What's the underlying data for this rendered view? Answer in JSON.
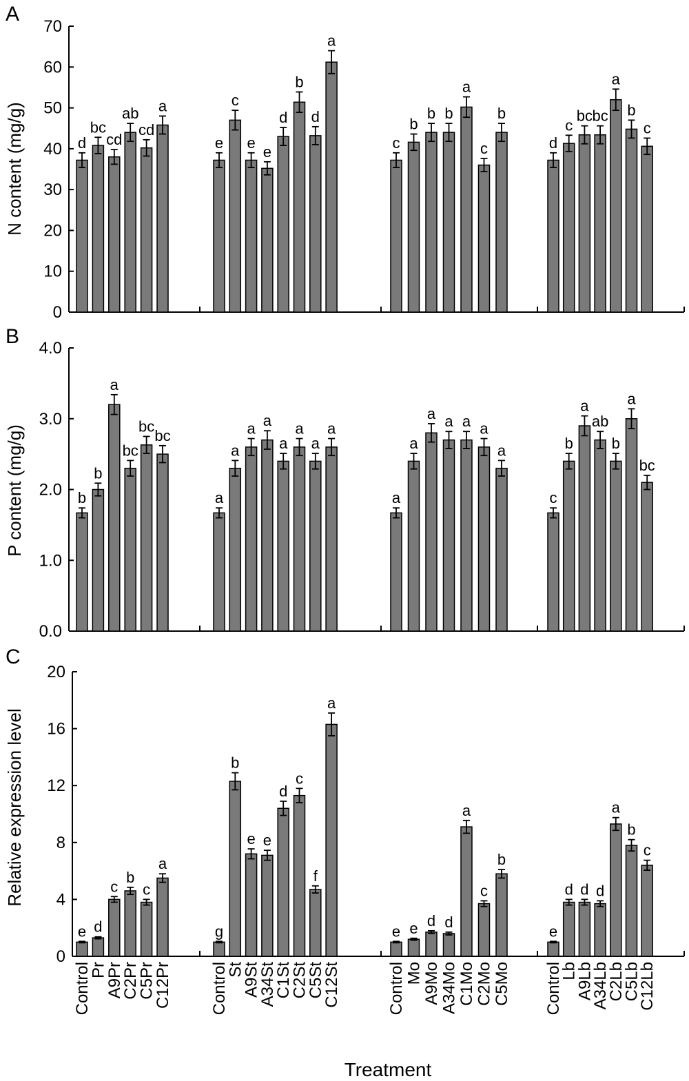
{
  "xlabel": "Treatment",
  "colors": {
    "bar": "#7a7a7a",
    "axis": "#000000"
  },
  "groups": [
    [
      "Control",
      "Pr",
      "A9Pr",
      "C2Pr",
      "C5Pr",
      "C12Pr"
    ],
    [
      "Control",
      "St",
      "A9St",
      "A34St",
      "C1St",
      "C2St",
      "C5St",
      "C12St"
    ],
    [
      "Control",
      "Mo",
      "A9Mo",
      "A34Mo",
      "C1Mo",
      "C2Mo",
      "C5Mo"
    ],
    [
      "Control",
      "Lb",
      "A9Lb",
      "A34Lb",
      "C2Lb",
      "C5Lb",
      "C12Lb"
    ]
  ],
  "chart_data": [
    {
      "type": "bar",
      "panel": "A",
      "ylabel": "N content (mg/g)",
      "ylim": [
        0,
        70
      ],
      "yticks": [
        "0",
        "10",
        "20",
        "30",
        "40",
        "50",
        "60",
        "70"
      ],
      "values": [
        [
          37.2,
          40.8,
          38.0,
          44.0,
          40.2,
          45.8
        ],
        [
          37.2,
          47.0,
          37.2,
          35.2,
          43.0,
          51.4,
          43.2,
          61.2
        ],
        [
          37.2,
          41.6,
          44.0,
          44.0,
          50.2,
          36.0,
          44.0
        ],
        [
          37.2,
          41.3,
          43.4,
          43.4,
          52.0,
          44.8,
          40.6
        ]
      ],
      "errors": [
        [
          1.8,
          2.0,
          1.8,
          2.2,
          2.0,
          2.2
        ],
        [
          1.8,
          2.4,
          1.8,
          1.6,
          2.2,
          2.5,
          2.2,
          2.8
        ],
        [
          1.8,
          2.0,
          2.2,
          2.2,
          2.5,
          1.6,
          2.2
        ],
        [
          1.8,
          2.0,
          2.2,
          2.2,
          2.6,
          2.2,
          2.0
        ]
      ],
      "letters": [
        [
          "d",
          "bc",
          "cd",
          "ab",
          "cd",
          "a"
        ],
        [
          "e",
          "c",
          "e",
          "e",
          "d",
          "b",
          "d",
          "a"
        ],
        [
          "c",
          "b",
          "b",
          "b",
          "a",
          "c",
          "b"
        ],
        [
          "d",
          "c",
          "bc",
          "bc",
          "a",
          "b",
          "c"
        ]
      ]
    },
    {
      "type": "bar",
      "panel": "B",
      "ylabel": "P content (mg/g)",
      "ylim": [
        0,
        4
      ],
      "yticks": [
        "0.0",
        "1.0",
        "2.0",
        "3.0",
        "4.0"
      ],
      "values": [
        [
          1.67,
          2.0,
          3.2,
          2.3,
          2.63,
          2.5
        ],
        [
          1.67,
          2.3,
          2.6,
          2.7,
          2.4,
          2.6,
          2.4,
          2.6
        ],
        [
          1.67,
          2.4,
          2.8,
          2.7,
          2.7,
          2.6,
          2.3
        ],
        [
          1.67,
          2.4,
          2.9,
          2.7,
          2.4,
          3.0,
          2.1
        ]
      ],
      "errors": [
        [
          0.07,
          0.09,
          0.14,
          0.11,
          0.12,
          0.12
        ],
        [
          0.07,
          0.11,
          0.12,
          0.13,
          0.11,
          0.12,
          0.11,
          0.12
        ],
        [
          0.07,
          0.11,
          0.13,
          0.12,
          0.12,
          0.12,
          0.11
        ],
        [
          0.07,
          0.11,
          0.14,
          0.12,
          0.11,
          0.14,
          0.1
        ]
      ],
      "letters": [
        [
          "b",
          "b",
          "a",
          "bc",
          "bc",
          "bc"
        ],
        [
          "a",
          "a",
          "a",
          "a",
          "a",
          "a",
          "a",
          "a"
        ],
        [
          "a",
          "a",
          "a",
          "a",
          "a",
          "a",
          "a"
        ],
        [
          "c",
          "b",
          "a",
          "ab",
          "b",
          "a",
          "bc"
        ]
      ]
    },
    {
      "type": "bar",
      "panel": "C",
      "ylabel": "Relative expression level",
      "ylim": [
        0,
        20
      ],
      "yticks": [
        "0",
        "4",
        "8",
        "12",
        "16",
        "20"
      ],
      "values": [
        [
          1.0,
          1.3,
          4.0,
          4.6,
          3.8,
          5.5
        ],
        [
          1.0,
          12.3,
          7.2,
          7.1,
          10.4,
          11.3,
          4.7,
          16.3
        ],
        [
          1.0,
          1.2,
          1.7,
          1.6,
          9.1,
          3.7,
          5.8
        ],
        [
          1.0,
          3.8,
          3.8,
          3.7,
          9.3,
          7.8,
          6.4
        ]
      ],
      "errors": [
        [
          0.05,
          0.07,
          0.2,
          0.25,
          0.2,
          0.3
        ],
        [
          0.05,
          0.6,
          0.35,
          0.35,
          0.5,
          0.5,
          0.25,
          0.8
        ],
        [
          0.05,
          0.07,
          0.1,
          0.1,
          0.45,
          0.2,
          0.3
        ],
        [
          0.05,
          0.2,
          0.2,
          0.2,
          0.45,
          0.4,
          0.35
        ]
      ],
      "letters": [
        [
          "e",
          "d",
          "c",
          "b",
          "c",
          "a"
        ],
        [
          "g",
          "b",
          "e",
          "e",
          "d",
          "c",
          "f",
          "a"
        ],
        [
          "e",
          "e",
          "d",
          "d",
          "a",
          "c",
          "b"
        ],
        [
          "e",
          "d",
          "d",
          "d",
          "a",
          "b",
          "c"
        ]
      ]
    }
  ]
}
